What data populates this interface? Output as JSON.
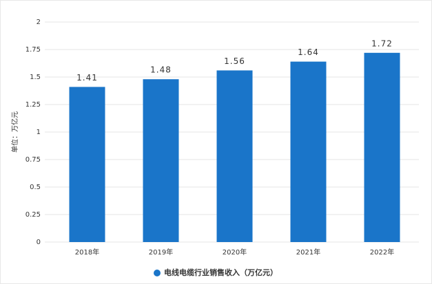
{
  "chart_data": {
    "type": "bar",
    "y_label": "单位：万亿元",
    "categories": [
      "2018年",
      "2019年",
      "2020年",
      "2021年",
      "2022年"
    ],
    "series": [
      {
        "name": "电线电缆行业销售收入（万亿元）",
        "color": "#1a75c9",
        "values": [
          1.41,
          1.48,
          1.56,
          1.64,
          1.72
        ]
      }
    ],
    "ylim": [
      0,
      2
    ],
    "yticks": [
      0,
      0.25,
      0.5,
      0.75,
      1,
      1.25,
      1.5,
      1.75,
      2
    ],
    "grid": true,
    "legend": "bottom"
  }
}
